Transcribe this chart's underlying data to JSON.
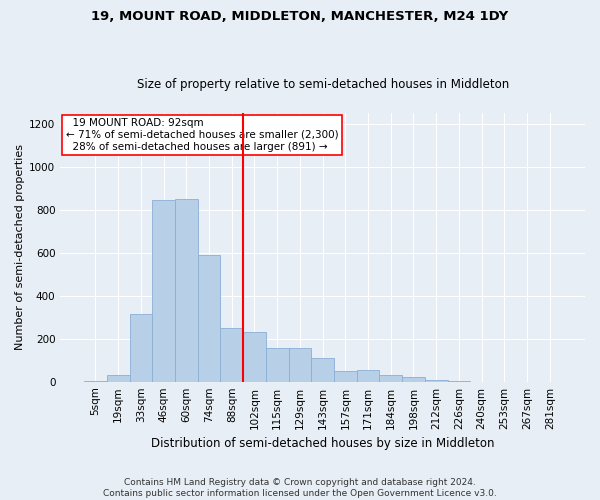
{
  "title1": "19, MOUNT ROAD, MIDDLETON, MANCHESTER, M24 1DY",
  "title2": "Size of property relative to semi-detached houses in Middleton",
  "xlabel": "Distribution of semi-detached houses by size in Middleton",
  "ylabel": "Number of semi-detached properties",
  "footnote": "Contains HM Land Registry data © Crown copyright and database right 2024.\nContains public sector information licensed under the Open Government Licence v3.0.",
  "bar_labels": [
    "5sqm",
    "19sqm",
    "33sqm",
    "46sqm",
    "60sqm",
    "74sqm",
    "88sqm",
    "102sqm",
    "115sqm",
    "129sqm",
    "143sqm",
    "157sqm",
    "171sqm",
    "184sqm",
    "198sqm",
    "212sqm",
    "226sqm",
    "240sqm",
    "253sqm",
    "267sqm",
    "281sqm"
  ],
  "bar_values": [
    5,
    30,
    315,
    845,
    850,
    590,
    250,
    230,
    155,
    155,
    110,
    50,
    55,
    30,
    20,
    10,
    5,
    0,
    0,
    0,
    0
  ],
  "bar_color": "#b8cfe8",
  "bar_edgecolor": "#8aafd4",
  "red_line_x": 6.5,
  "ylim": [
    0,
    1250
  ],
  "yticks": [
    0,
    200,
    400,
    600,
    800,
    1000,
    1200
  ],
  "annotation_text": "  19 MOUNT ROAD: 92sqm  \n← 71% of semi-detached houses are smaller (2,300)\n  28% of semi-detached houses are larger (891) →",
  "bg_color": "#e8eef5",
  "grid_color": "#ffffff",
  "title1_fontsize": 9.5,
  "title2_fontsize": 8.5,
  "xlabel_fontsize": 8.5,
  "ylabel_fontsize": 8,
  "tick_fontsize": 7.5,
  "footnote_fontsize": 6.5
}
